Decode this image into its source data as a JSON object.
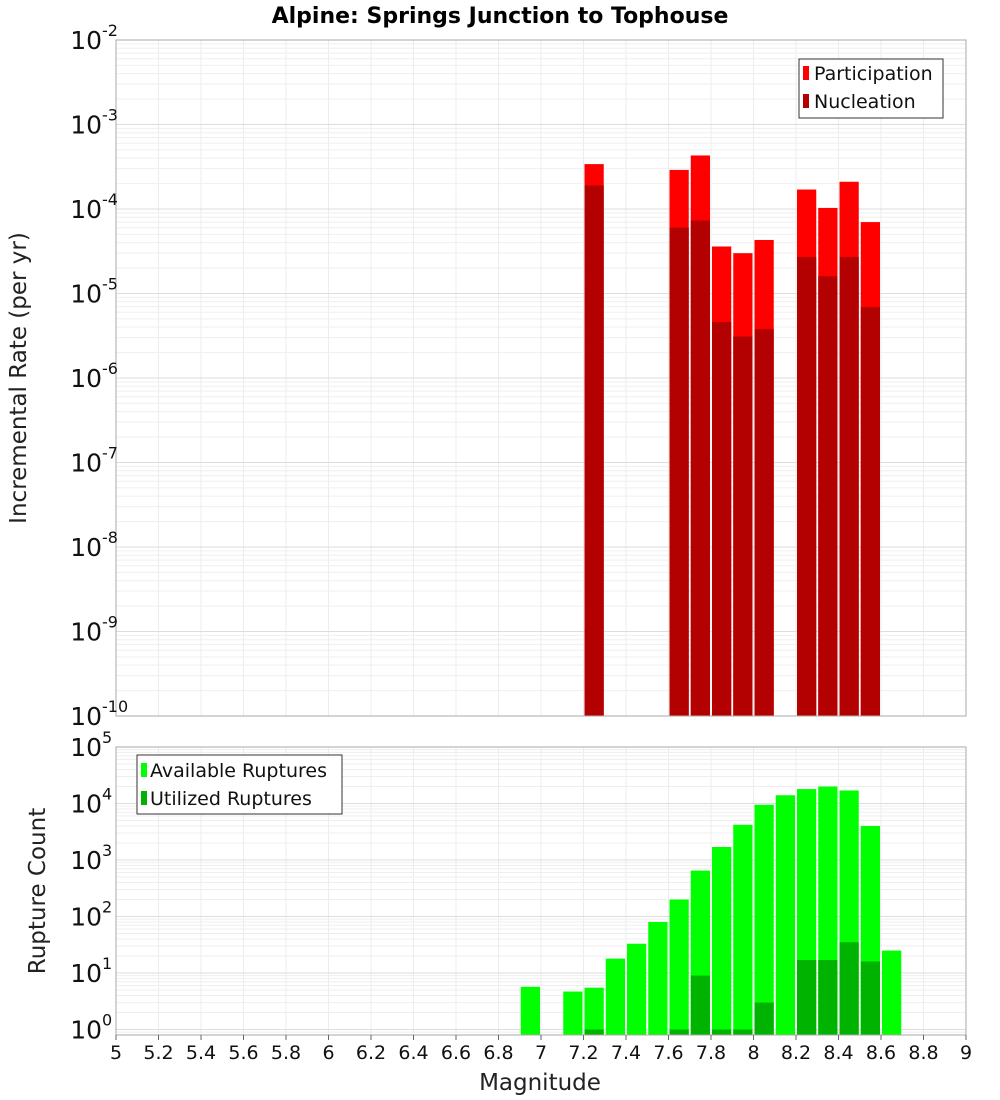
{
  "chart_data": [
    {
      "type": "bar",
      "title": "Alpine: Springs Junction to Tophouse",
      "xlabel": "",
      "ylabel": "Incremental Rate (per yr)",
      "yscale": "log",
      "ylim": [
        1e-10,
        0.01
      ],
      "xlim": [
        5,
        9
      ],
      "yticks": [
        {
          "base": "10",
          "exp": "-10"
        },
        {
          "base": "10",
          "exp": "-9"
        },
        {
          "base": "10",
          "exp": "-8"
        },
        {
          "base": "10",
          "exp": "-7"
        },
        {
          "base": "10",
          "exp": "-6"
        },
        {
          "base": "10",
          "exp": "-5"
        },
        {
          "base": "10",
          "exp": "-4"
        },
        {
          "base": "10",
          "exp": "-3"
        },
        {
          "base": "10",
          "exp": "-2"
        }
      ],
      "grid": true,
      "legend_position": "top-right",
      "series": [
        {
          "name": "Participation",
          "color": "#ff0000",
          "x": [
            7.25,
            7.65,
            7.75,
            7.85,
            7.95,
            8.05,
            8.25,
            8.35,
            8.45,
            8.55
          ],
          "values": [
            0.00034,
            0.00029,
            0.00043,
            3.6e-05,
            3e-05,
            4.3e-05,
            0.00017,
            0.000103,
            0.00021,
            7e-05
          ]
        },
        {
          "name": "Nucleation",
          "color": "#b30000",
          "x": [
            7.25,
            7.65,
            7.75,
            7.85,
            7.95,
            8.05,
            8.25,
            8.35,
            8.45,
            8.55
          ],
          "values": [
            0.00019,
            6e-05,
            7.3e-05,
            4.6e-06,
            3.1e-06,
            3.8e-06,
            2.7e-05,
            1.6e-05,
            2.7e-05,
            6.9e-06
          ]
        }
      ]
    },
    {
      "type": "bar",
      "title": "",
      "xlabel": "Magnitude",
      "ylabel": "Rupture Count",
      "yscale": "log",
      "ylim": [
        0.8,
        100000.0
      ],
      "xlim": [
        5,
        9
      ],
      "xticks": [
        "5",
        "5.2",
        "5.4",
        "5.6",
        "5.8",
        "6",
        "6.2",
        "6.4",
        "6.6",
        "6.8",
        "7",
        "7.2",
        "7.4",
        "7.6",
        "7.8",
        "8",
        "8.2",
        "8.4",
        "8.6",
        "8.8",
        "9"
      ],
      "yticks": [
        {
          "base": "10",
          "exp": "0"
        },
        {
          "base": "10",
          "exp": "1"
        },
        {
          "base": "10",
          "exp": "2"
        },
        {
          "base": "10",
          "exp": "3"
        },
        {
          "base": "10",
          "exp": "4"
        },
        {
          "base": "10",
          "exp": "5"
        }
      ],
      "grid": true,
      "legend_position": "top-left",
      "series": [
        {
          "name": "Available Ruptures",
          "color": "#00ff00",
          "x": [
            6.95,
            7.15,
            7.25,
            7.35,
            7.45,
            7.55,
            7.65,
            7.75,
            7.85,
            7.95,
            8.05,
            8.15,
            8.25,
            8.35,
            8.45,
            8.55,
            8.65
          ],
          "values": [
            5.7,
            4.7,
            5.5,
            18,
            33,
            80,
            200,
            650,
            1700,
            4200,
            9500,
            14000,
            18000,
            20000,
            17000,
            4000,
            25
          ]
        },
        {
          "name": "Utilized Ruptures",
          "color": "#00b300",
          "x": [
            7.25,
            7.65,
            7.75,
            7.85,
            7.95,
            8.05,
            8.25,
            8.35,
            8.45,
            8.55
          ],
          "values": [
            1,
            1,
            9,
            1,
            1,
            3,
            17,
            17,
            35,
            16
          ]
        }
      ]
    }
  ]
}
